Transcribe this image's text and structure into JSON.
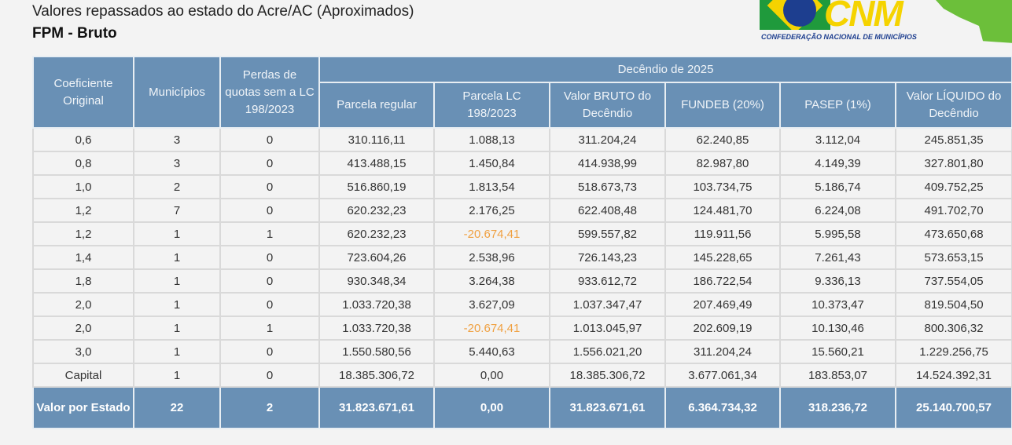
{
  "header": {
    "title": "Valores repassados ao estado do Acre/AC (Aproximados)",
    "subtitle": "FPM - Bruto"
  },
  "logo": {
    "text": "CNM",
    "subtext": "CONFEDERAÇÃO NACIONAL DE MUNICÍPIOS"
  },
  "table": {
    "group_header": "Decêndio de 2025",
    "columns": [
      "Coeficiente Original",
      "Municípios",
      "Perdas de quotas sem a LC 198/2023",
      "Parcela regular",
      "Parcela LC 198/2023",
      "Valor BRUTO do Decêndio",
      "FUNDEB (20%)",
      "PASEP (1%)",
      "Valor LÍQUIDO do Decêndio"
    ],
    "rows": [
      [
        "0,6",
        "3",
        "0",
        "310.116,11",
        "1.088,13",
        "311.204,24",
        "62.240,85",
        "3.112,04",
        "245.851,35"
      ],
      [
        "0,8",
        "3",
        "0",
        "413.488,15",
        "1.450,84",
        "414.938,99",
        "82.987,80",
        "4.149,39",
        "327.801,80"
      ],
      [
        "1,0",
        "2",
        "0",
        "516.860,19",
        "1.813,54",
        "518.673,73",
        "103.734,75",
        "5.186,74",
        "409.752,25"
      ],
      [
        "1,2",
        "7",
        "0",
        "620.232,23",
        "2.176,25",
        "622.408,48",
        "124.481,70",
        "6.224,08",
        "491.702,70"
      ],
      [
        "1,2",
        "1",
        "1",
        "620.232,23",
        "-20.674,41",
        "599.557,82",
        "119.911,56",
        "5.995,58",
        "473.650,68"
      ],
      [
        "1,4",
        "1",
        "0",
        "723.604,26",
        "2.538,96",
        "726.143,23",
        "145.228,65",
        "7.261,43",
        "573.653,15"
      ],
      [
        "1,8",
        "1",
        "0",
        "930.348,34",
        "3.264,38",
        "933.612,72",
        "186.722,54",
        "9.336,13",
        "737.554,05"
      ],
      [
        "2,0",
        "1",
        "0",
        "1.033.720,38",
        "3.627,09",
        "1.037.347,47",
        "207.469,49",
        "10.373,47",
        "819.504,50"
      ],
      [
        "2,0",
        "1",
        "1",
        "1.033.720,38",
        "-20.674,41",
        "1.013.045,97",
        "202.609,19",
        "10.130,46",
        "800.306,32"
      ],
      [
        "3,0",
        "1",
        "0",
        "1.550.580,56",
        "5.440,63",
        "1.556.021,20",
        "311.204,24",
        "15.560,21",
        "1.229.256,75"
      ],
      [
        "Capital",
        "1",
        "0",
        "18.385.306,72",
        "0,00",
        "18.385.306,72",
        "3.677.061,34",
        "183.853,07",
        "14.524.392,31"
      ]
    ],
    "total": [
      "Valor por Estado",
      "22",
      "2",
      "31.823.671,61",
      "0,00",
      "31.823.671,61",
      "6.364.734,32",
      "318.236,72",
      "25.140.700,57"
    ],
    "colors": {
      "header": "#6990b5",
      "negative": "#f0a040"
    }
  }
}
